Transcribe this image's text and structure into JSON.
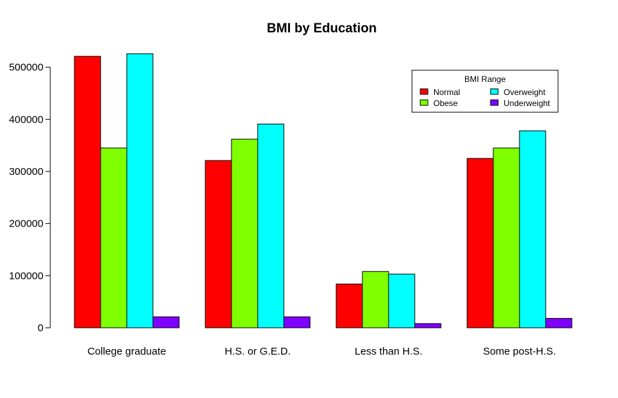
{
  "chart_data": {
    "type": "bar",
    "title": "BMI by Education",
    "xlabel": "",
    "ylabel": "",
    "categories": [
      "College graduate",
      "H.S. or G.E.D.",
      "Less than H.S.",
      "Some post-H.S."
    ],
    "series": [
      {
        "name": "Normal",
        "color": "#ff0000",
        "values": [
          521000,
          321000,
          84000,
          325000
        ]
      },
      {
        "name": "Obese",
        "color": "#80ff00",
        "values": [
          345000,
          362000,
          108000,
          345000
        ]
      },
      {
        "name": "Overweight",
        "color": "#00ffff",
        "values": [
          526000,
          391000,
          103000,
          378000
        ]
      },
      {
        "name": "Underweight",
        "color": "#8000ff",
        "values": [
          21000,
          21000,
          8000,
          18000
        ]
      }
    ],
    "ylim": [
      0,
      526000
    ],
    "yticks": [
      0,
      100000,
      200000,
      300000,
      400000,
      500000
    ],
    "ytick_labels": [
      "0",
      "100000",
      "200000",
      "300000",
      "400000",
      "500000"
    ],
    "legend": {
      "title": "BMI Range",
      "position": "top-right"
    },
    "grid": false
  }
}
